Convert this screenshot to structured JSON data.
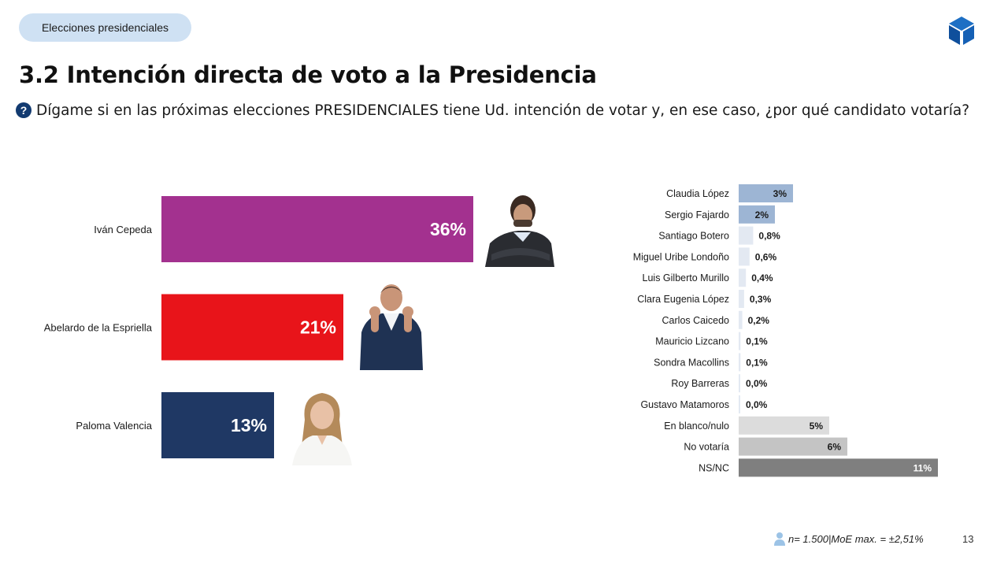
{
  "header": {
    "section_tag": "Elecciones presidenciales",
    "logo": "cube-logo-icon",
    "title": "3.2 Intención directa de voto a la Presidencia",
    "question_icon": "question-circle-icon",
    "question": "Dígame si en las próximas elecciones PRESIDENCIALES tiene Ud. intención de votar y, en ese caso, ¿por qué candidato votaría?"
  },
  "chart_data": [
    {
      "type": "bar",
      "orientation": "horizontal",
      "title": "",
      "categories": [
        "Iván Cepeda",
        "Abelardo de la Espriella",
        "Paloma Valencia"
      ],
      "values": [
        36,
        21,
        13
      ],
      "value_labels": [
        "36%",
        "21%",
        "13%"
      ],
      "colors": [
        "#a3318f",
        "#e8141a",
        "#1f3864"
      ],
      "xlim": [
        0,
        36
      ],
      "grid": false,
      "candidate_photos": [
        "photo-ivan-cepeda",
        "photo-abelardo-de-la-espriella",
        "photo-paloma-valencia"
      ]
    },
    {
      "type": "bar",
      "orientation": "horizontal",
      "title": "",
      "categories": [
        "Claudia López",
        "Sergio Fajardo",
        "Santiago Botero",
        "Miguel Uribe Londoño",
        "Luis Gilberto Murillo",
        "Clara Eugenia López",
        "Carlos Caicedo",
        "Mauricio Lizcano",
        "Sondra Macollins",
        "Roy Barreras",
        "Gustavo Matamoros",
        "En blanco/nulo",
        "No votaría",
        "NS/NC"
      ],
      "values": [
        3,
        2,
        0.8,
        0.6,
        0.4,
        0.3,
        0.2,
        0.1,
        0.1,
        0.0,
        0.0,
        5,
        6,
        11
      ],
      "value_labels": [
        "3%",
        "2%",
        "0,8%",
        "0,6%",
        "0,4%",
        "0,3%",
        "0,2%",
        "0,1%",
        "0,1%",
        "0,0%",
        "0,0%",
        "5%",
        "6%",
        "11%"
      ],
      "colors": [
        "#9db5d4",
        "#9db5d4",
        "#e3e9f2",
        "#e3e9f2",
        "#e3e9f2",
        "#e3e9f2",
        "#e3e9f2",
        "#e3e9f2",
        "#e3e9f2",
        "#e3e9f2",
        "#e3e9f2",
        "#dcdcdc",
        "#c4c4c4",
        "#7f7f7f"
      ],
      "label_colors": [
        "#1a1a1a",
        "#1a1a1a",
        "#1a1a1a",
        "#1a1a1a",
        "#1a1a1a",
        "#1a1a1a",
        "#1a1a1a",
        "#1a1a1a",
        "#1a1a1a",
        "#1a1a1a",
        "#1a1a1a",
        "#1a1a1a",
        "#1a1a1a",
        "#ffffff"
      ],
      "xlim": [
        0,
        11
      ],
      "grid": false
    }
  ],
  "footer": {
    "icon": "user-icon",
    "sample": "n= 1.500",
    "separator": " | ",
    "moe": "MoE max. = ±2,51%",
    "page_number": "13"
  }
}
